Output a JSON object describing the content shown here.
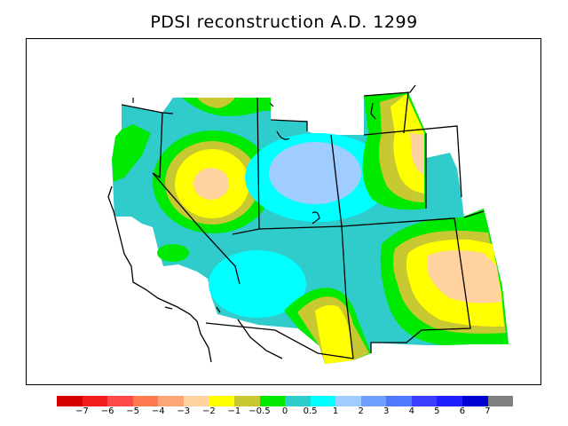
{
  "title": "PDSI reconstruction A.D. 1299",
  "legend": {
    "colors": [
      "#d40000",
      "#f01c1c",
      "#ff4a4a",
      "#ff7a50",
      "#ffa57a",
      "#ffd2a0",
      "#ffff00",
      "#c8c832",
      "#00ea00",
      "#30cccc",
      "#00ffff",
      "#a0cdff",
      "#70a0ff",
      "#5078ff",
      "#3c3cff",
      "#2020ff",
      "#0000d0",
      "#808080"
    ],
    "labels": [
      "−7",
      "−6",
      "−5",
      "−4",
      "−3",
      "−2",
      "−1",
      "−0.5",
      "0",
      "0.5",
      "1",
      "2",
      "3",
      "4",
      "5",
      "6",
      "7"
    ]
  }
}
